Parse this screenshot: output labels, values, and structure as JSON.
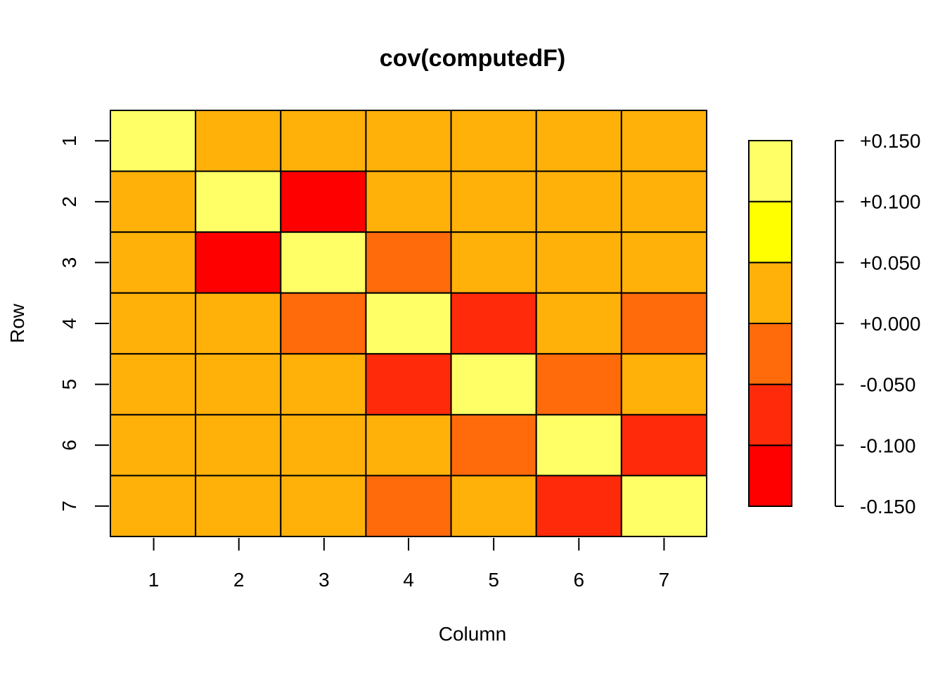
{
  "chart_data": {
    "type": "heatmap",
    "title": "cov(computedF)",
    "xlabel": "Column",
    "ylabel": "Row",
    "x_categories": [
      "1",
      "2",
      "3",
      "4",
      "5",
      "6",
      "7"
    ],
    "y_categories": [
      "1",
      "2",
      "3",
      "4",
      "5",
      "6",
      "7"
    ],
    "values": [
      [
        0.125,
        0.025,
        0.025,
        0.025,
        0.025,
        0.025,
        0.025
      ],
      [
        0.025,
        0.14,
        -0.14,
        0.025,
        0.025,
        0.025,
        0.025
      ],
      [
        0.025,
        -0.14,
        0.14,
        -0.025,
        0.025,
        0.025,
        0.025
      ],
      [
        0.025,
        0.025,
        -0.025,
        0.14,
        -0.075,
        0.025,
        -0.025
      ],
      [
        0.025,
        0.025,
        0.025,
        -0.075,
        0.14,
        -0.025,
        0.025
      ],
      [
        0.025,
        0.025,
        0.025,
        0.025,
        -0.025,
        0.125,
        -0.075
      ],
      [
        0.025,
        0.025,
        0.025,
        -0.025,
        0.025,
        -0.075,
        0.14
      ]
    ],
    "legend": {
      "placement": "right",
      "breaks": [
        -0.15,
        -0.1,
        -0.05,
        0.0,
        0.05,
        0.1,
        0.15
      ],
      "colors": [
        "#FF0000",
        "#FF2A0A",
        "#FF6A0A",
        "#FFB10A",
        "#FFFF00",
        "#FFFF66"
      ],
      "tick_labels": [
        "-0.150",
        "-0.100",
        "-0.050",
        "+0.000",
        "+0.050",
        "+0.100",
        "+0.150"
      ]
    }
  }
}
